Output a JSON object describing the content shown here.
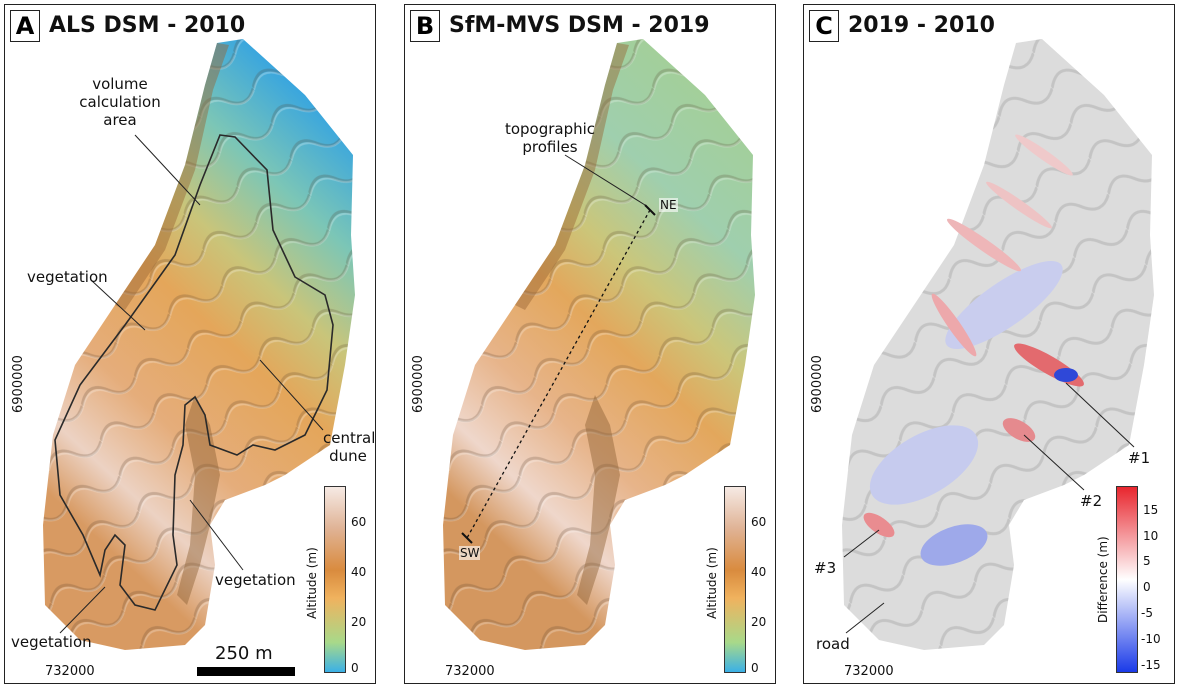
{
  "panels": {
    "a": {
      "letter": "A",
      "title": "ALS DSM - 2010"
    },
    "b": {
      "letter": "B",
      "title": "SfM-MVS DSM - 2019"
    },
    "c": {
      "letter": "C",
      "title": "2019 - 2010"
    }
  },
  "annotations": {
    "volume_area": "volume calculation area",
    "vegetation": "vegetation",
    "central_dune": "central dune",
    "topographic_profiles": "topographic profiles",
    "profile_ne": "NE",
    "profile_sw": "SW",
    "site1": "#1",
    "site2": "#2",
    "site3": "#3",
    "road": "road"
  },
  "axes": {
    "northing_tick": "6900000",
    "easting_tick": "732000"
  },
  "scale_bar": {
    "label": "250 m"
  },
  "altitude_colorbar": {
    "title": "Altitude (m)",
    "ticks": [
      "60",
      "40",
      "20",
      "0"
    ],
    "min": 0,
    "max": 75,
    "colors": [
      "#3bb0e6",
      "#a8d98a",
      "#f0b25e",
      "#d98b3e",
      "#e0b497",
      "#f6eae4"
    ]
  },
  "difference_colorbar": {
    "title": "Difference (m)",
    "ticks": [
      "15",
      "10",
      "5",
      "0",
      "-5",
      "-10",
      "-15"
    ],
    "min": -18,
    "max": 18,
    "colors": [
      "#1a3ae8",
      "#ffffff",
      "#e8262e"
    ]
  }
}
